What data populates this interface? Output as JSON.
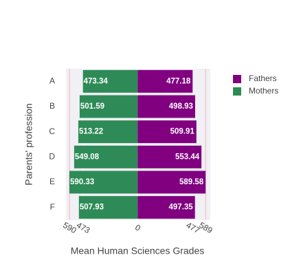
{
  "chart_data": {
    "type": "bar",
    "orientation": "horizontal",
    "x_label": "Mean Human Sciences Grades",
    "y_label": "Parents' profession",
    "categories": [
      "A",
      "B",
      "C",
      "D",
      "E",
      "F"
    ],
    "series": [
      {
        "name": "Fathers",
        "color": "#800080",
        "side": "right",
        "values": [
          477.18,
          498.93,
          509.91,
          553.44,
          589.58,
          497.35
        ]
      },
      {
        "name": "Mothers",
        "color": "#2e8b57",
        "side": "left",
        "values": [
          473.34,
          501.59,
          513.22,
          549.08,
          590.33,
          507.93
        ]
      }
    ],
    "xlim": [
      -620,
      630
    ],
    "xticks": [
      {
        "value": -590,
        "label": "590"
      },
      {
        "value": -473,
        "label": "473"
      },
      0,
      477,
      {
        "value": 589,
        "label": "589"
      }
    ],
    "legend": "top-right"
  }
}
